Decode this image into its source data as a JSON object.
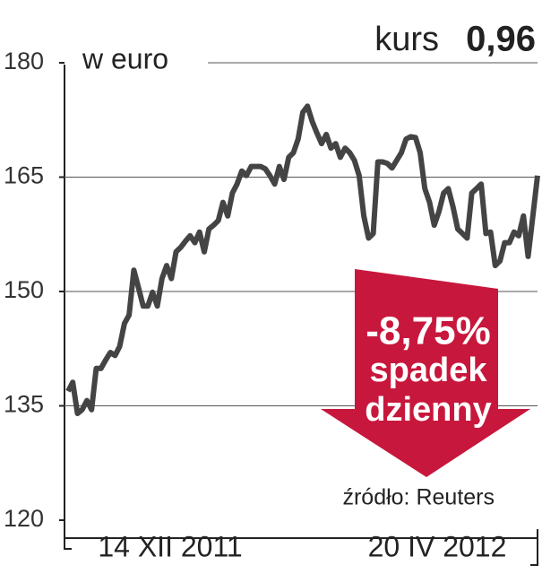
{
  "chart_data": {
    "type": "line",
    "headline": {
      "label": "kurs",
      "value": "0,96"
    },
    "y_unit": "w euro",
    "x_labels": [
      "14 XII 2011",
      "20 IV 2012"
    ],
    "annotation": [
      "-8,75%",
      "spadek",
      "dzienny"
    ],
    "source": "źródło: Reuters",
    "ylim": [
      120,
      180
    ],
    "yticks": [
      120,
      135,
      150,
      165,
      180
    ],
    "grid": true,
    "series": [
      {
        "color": "#444444",
        "values": [
          136.9,
          138.1,
          134.0,
          134.5,
          135.7,
          134.5,
          139.9,
          139.9,
          141.0,
          142.0,
          141.6,
          142.8,
          145.8,
          146.9,
          152.8,
          150.5,
          148.1,
          148.1,
          149.9,
          148.1,
          151.7,
          153.4,
          151.7,
          155.2,
          155.8,
          156.6,
          157.3,
          156.4,
          157.8,
          155.2,
          158.2,
          158.7,
          159.3,
          161.7,
          159.9,
          162.9,
          164.1,
          165.8,
          165.2,
          166.4,
          166.4,
          166.4,
          166.1,
          165.2,
          164.1,
          166.4,
          164.7,
          167.6,
          168.2,
          170.0,
          173.5,
          174.3,
          172.3,
          170.8,
          169.4,
          170.6,
          168.8,
          169.4,
          167.6,
          168.8,
          168.2,
          167.2,
          165.2,
          159.9,
          157.0,
          157.6,
          167.0,
          167.0,
          166.8,
          166.2,
          167.2,
          168.2,
          170.0,
          170.3,
          170.2,
          168.2,
          163.5,
          161.7,
          158.7,
          160.5,
          162.9,
          163.5,
          161.1,
          158.2,
          157.6,
          157.0,
          162.9,
          163.5,
          164.1,
          157.6,
          157.8,
          153.4,
          154.0,
          156.4,
          156.4,
          157.8,
          157.3,
          159.9,
          154.6,
          159.9,
          165.2
        ]
      }
    ]
  }
}
